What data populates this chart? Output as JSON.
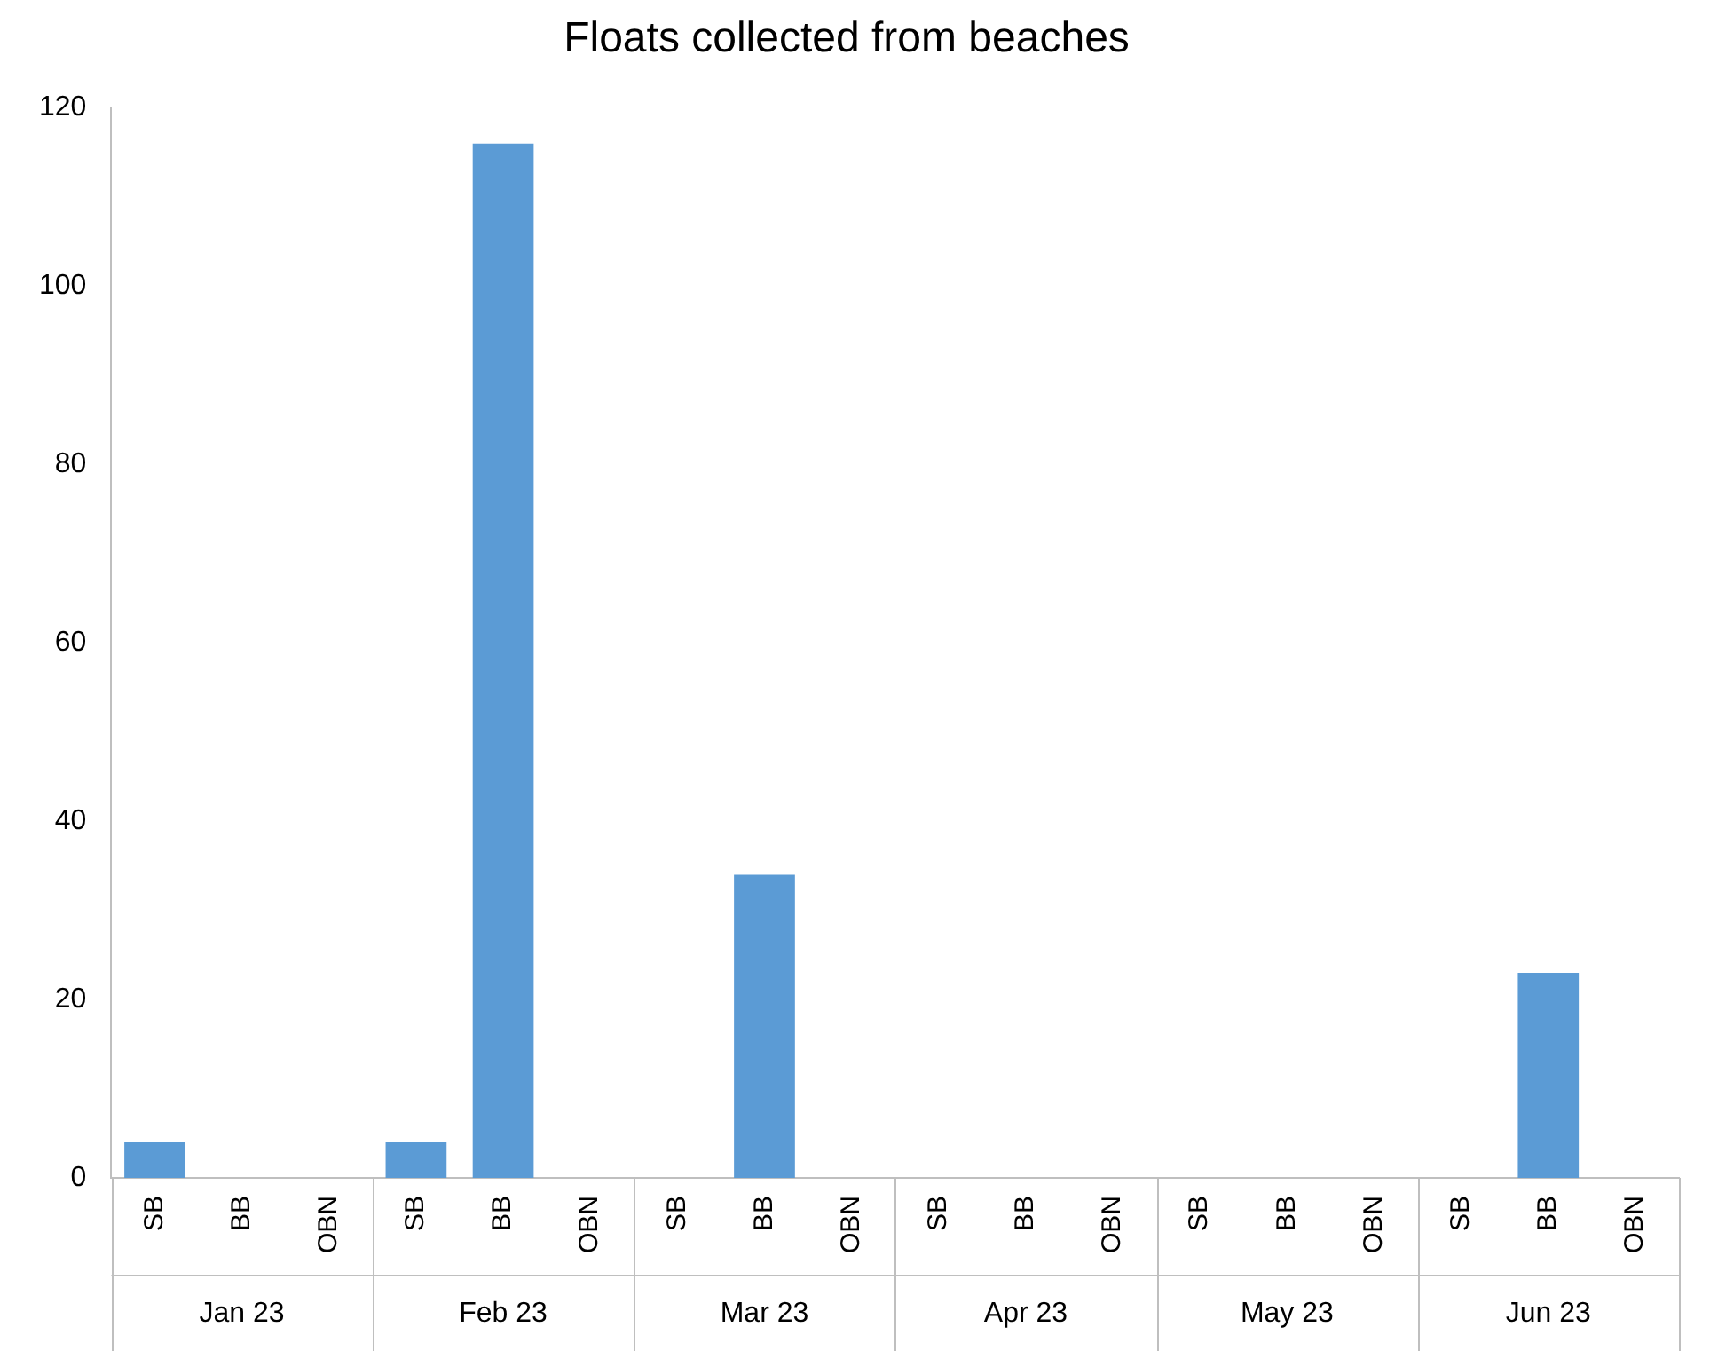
{
  "chart_data": {
    "type": "bar",
    "title": "Floats collected from beaches",
    "categories": [
      "SB",
      "BB",
      "OBN",
      "SB",
      "BB",
      "OBN",
      "SB",
      "BB",
      "OBN",
      "SB",
      "BB",
      "OBN",
      "SB",
      "BB",
      "OBN",
      "SB",
      "BB",
      "OBN"
    ],
    "series": [
      {
        "color": "#5b9bd5",
        "values": [
          4,
          0,
          0,
          4,
          116,
          0,
          0,
          34,
          0,
          0,
          0,
          0,
          0,
          0,
          0,
          0,
          23,
          0
        ]
      }
    ],
    "annotations": [
      "Jan 23",
      "Feb 23",
      "Mar 23",
      "Apr 23",
      "May 23",
      "Jun 23"
    ],
    "ylim": [
      0,
      120
    ],
    "yticks": [
      0,
      20,
      40,
      60,
      80,
      100,
      120
    ],
    "grid": false,
    "legend": false
  }
}
